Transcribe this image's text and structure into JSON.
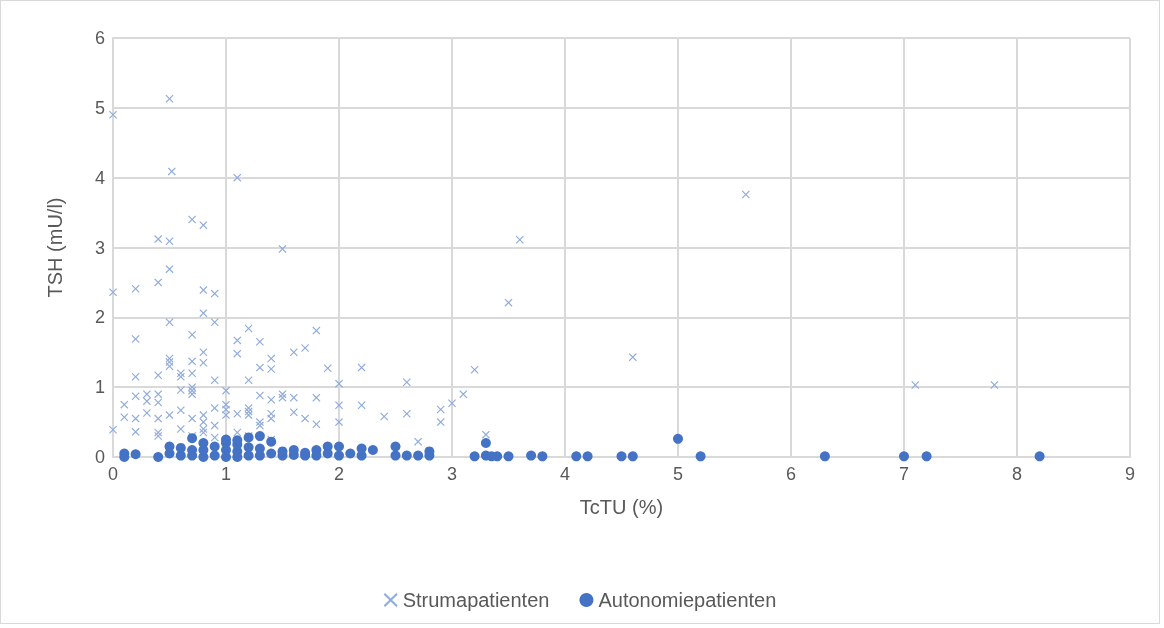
{
  "chart_data": {
    "type": "scatter",
    "xlabel": "TcTU (%)",
    "ylabel": "TSH (mU/l)",
    "xlim": [
      0,
      9
    ],
    "xticks": [
      0,
      1,
      2,
      3,
      4,
      5,
      6,
      7,
      8,
      9
    ],
    "ylim": [
      0,
      6
    ],
    "yticks": [
      0,
      1,
      2,
      3,
      4,
      5,
      6
    ],
    "grid": true,
    "legend": "bottom",
    "series": [
      {
        "name": "Strumapatienten",
        "color": "#8faadc",
        "marker": "cross",
        "x": [
          0,
          0.5,
          0.52,
          1.1,
          0.7,
          0.8,
          0.4,
          0.5,
          1.5,
          0.4,
          0.5,
          0,
          0.2,
          0.8,
          0.9,
          0.8,
          0.5,
          0.9,
          1.2,
          1.8,
          0.2,
          0.7,
          1.1,
          1.3,
          1.7,
          1.6,
          0.8,
          1.1,
          1.4,
          0.5,
          0.5,
          0.5,
          0.8,
          0.7,
          0.6,
          0.6,
          0.4,
          0.2,
          0.7,
          1.2,
          0.9,
          1.4,
          1.3,
          1.9,
          2.2,
          3.2,
          2.6,
          2.0,
          0.7,
          0.7,
          0.7,
          0.9,
          0.6,
          1.0,
          0.4,
          0.3,
          0.2,
          0.1,
          0.3,
          0.4,
          1.5,
          1.5,
          1.3,
          1.6,
          1.8,
          1.0,
          1.0,
          1.0,
          1.2,
          1.2,
          1.2,
          1.1,
          0.8,
          0.6,
          0.5,
          0.4,
          0.2,
          0.1,
          0.3,
          1.4,
          1.4,
          1.6,
          1.7,
          1.8,
          2.0,
          2.0,
          2.2,
          2.4,
          2.6,
          2.9,
          2.9,
          3.0,
          3.1,
          1.4,
          1.3,
          1.3,
          0.9,
          0.8,
          0.8,
          0.7,
          0.6,
          0.4,
          0.4,
          0.2,
          0,
          1.1,
          1.4,
          1.2,
          0.8,
          0.7,
          2.7,
          3.3,
          3.5,
          3.6,
          4.6,
          5.6,
          7.1,
          7.8,
          0.9
        ],
        "values": [
          4.9,
          5.13,
          4.09,
          4.0,
          3.4,
          3.32,
          3.12,
          3.09,
          2.98,
          2.5,
          2.69,
          2.36,
          2.41,
          2.39,
          2.34,
          2.06,
          1.93,
          1.93,
          1.84,
          1.81,
          1.69,
          1.75,
          1.67,
          1.65,
          1.56,
          1.5,
          1.5,
          1.48,
          1.41,
          1.41,
          1.36,
          1.3,
          1.35,
          1.37,
          1.2,
          1.15,
          1.17,
          1.15,
          1.2,
          1.1,
          1.1,
          1.26,
          1.28,
          1.27,
          1.28,
          1.25,
          1.07,
          1.05,
          1.0,
          0.95,
          0.9,
          0.7,
          0.96,
          0.95,
          0.9,
          0.9,
          0.87,
          0.75,
          0.8,
          0.78,
          0.9,
          0.85,
          0.88,
          0.85,
          0.85,
          0.75,
          0.68,
          0.6,
          0.7,
          0.65,
          0.6,
          0.62,
          0.6,
          0.67,
          0.6,
          0.55,
          0.55,
          0.57,
          0.63,
          0.82,
          0.62,
          0.64,
          0.55,
          0.47,
          0.74,
          0.5,
          0.74,
          0.58,
          0.62,
          0.68,
          0.5,
          0.77,
          0.9,
          0.55,
          0.5,
          0.45,
          0.45,
          0.4,
          0.35,
          0.3,
          0.4,
          0.35,
          0.3,
          0.36,
          0.39,
          0.35,
          0.25,
          0.3,
          0.5,
          0.55,
          0.22,
          0.32,
          2.21,
          3.11,
          1.43,
          3.76,
          1.03,
          1.03,
          0.28
        ]
      },
      {
        "name": "Autonomiepatienten",
        "color": "#4472c4",
        "marker": "circle",
        "x": [
          0.1,
          0.1,
          0.2,
          0.4,
          0.5,
          0.5,
          0.6,
          0.6,
          0.7,
          0.7,
          0.7,
          0.8,
          0.8,
          0.8,
          0.9,
          0.9,
          1.0,
          1.0,
          1.0,
          1.0,
          1.1,
          1.1,
          1.1,
          1.1,
          1.2,
          1.2,
          1.2,
          1.3,
          1.3,
          1.3,
          1.4,
          1.4,
          1.5,
          1.5,
          1.6,
          1.6,
          1.7,
          1.7,
          1.8,
          1.8,
          1.9,
          1.9,
          2.0,
          2.0,
          2.1,
          2.2,
          2.2,
          2.3,
          2.5,
          2.5,
          2.6,
          2.7,
          2.8,
          2.8,
          3.2,
          3.3,
          3.3,
          3.35,
          3.4,
          3.5,
          3.7,
          3.8,
          4.1,
          4.2,
          4.5,
          4.6,
          5.0,
          5.2,
          6.3,
          7.0,
          7.2,
          8.2
        ],
        "values": [
          0.05,
          0,
          0.04,
          0,
          0.05,
          0.15,
          0.02,
          0.13,
          0.02,
          0.1,
          0.27,
          0,
          0.1,
          0.2,
          0.02,
          0.15,
          0,
          0.1,
          0.2,
          0.25,
          0,
          0.08,
          0.18,
          0.24,
          0.02,
          0.14,
          0.28,
          0.02,
          0.12,
          0.3,
          0.05,
          0.22,
          0.02,
          0.08,
          0.03,
          0.1,
          0.02,
          0.06,
          0.02,
          0.1,
          0.05,
          0.15,
          0.02,
          0.15,
          0.05,
          0.02,
          0.12,
          0.1,
          0.02,
          0.15,
          0.02,
          0.02,
          0.02,
          0.08,
          0.01,
          0.02,
          0.2,
          0.01,
          0.01,
          0.01,
          0.02,
          0.01,
          0.01,
          0.01,
          0.01,
          0.01,
          0.26,
          0.01,
          0.01,
          0.01,
          0.01,
          0.01
        ]
      }
    ]
  }
}
